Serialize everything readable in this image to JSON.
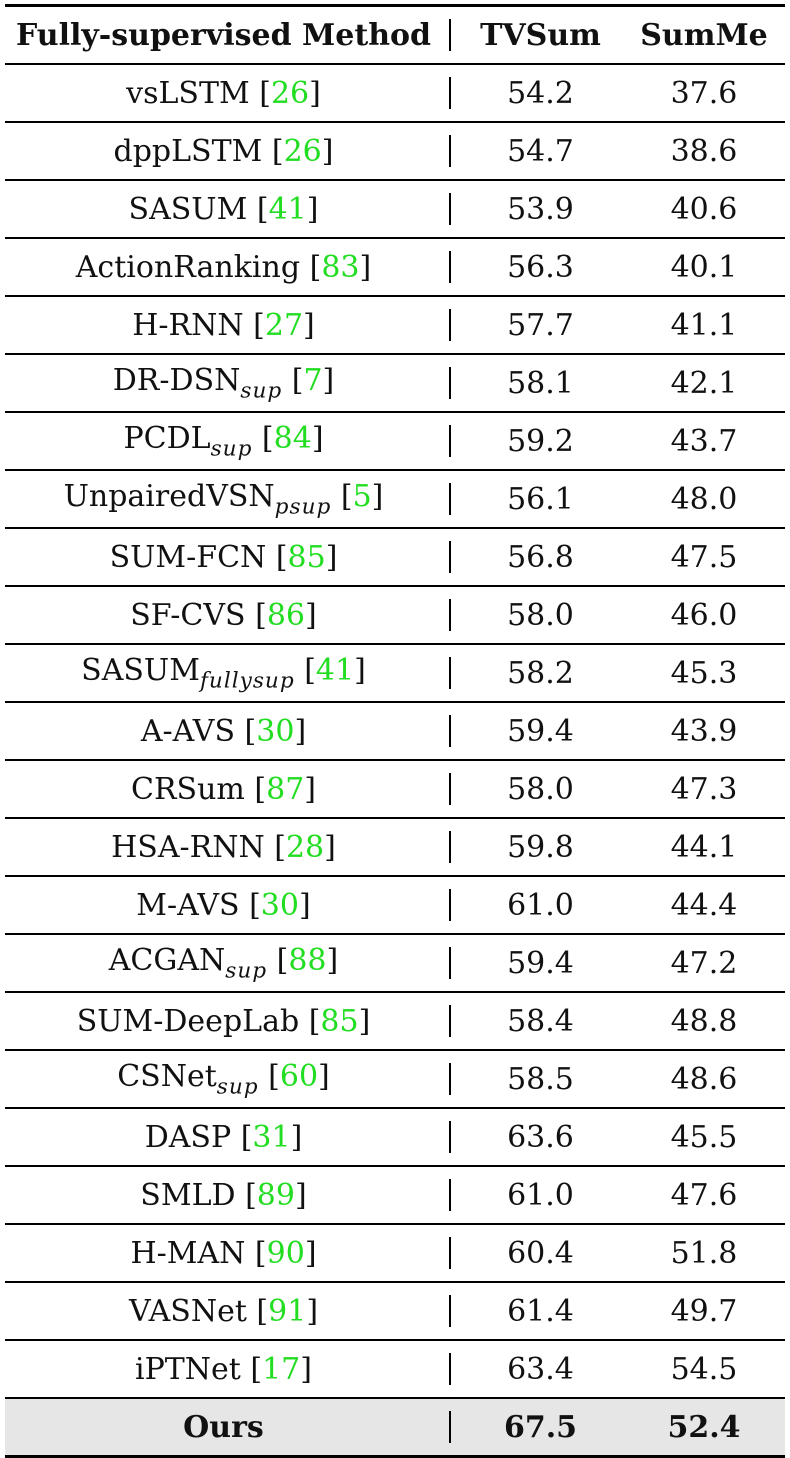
{
  "header": {
    "method": "Fully-supervised Method",
    "tvsum": "TVSum",
    "summe": "SumMe"
  },
  "rows": [
    {
      "name": "vsLSTM",
      "sub": "",
      "ref": "26",
      "tvsum": "54.2",
      "summe": "37.6"
    },
    {
      "name": "dppLSTM",
      "sub": "",
      "ref": "26",
      "tvsum": "54.7",
      "summe": "38.6"
    },
    {
      "name": "SASUM",
      "sub": "",
      "ref": "41",
      "tvsum": "53.9",
      "summe": "40.6"
    },
    {
      "name": "ActionRanking",
      "sub": "",
      "ref": "83",
      "tvsum": "56.3",
      "summe": "40.1"
    },
    {
      "name": "H-RNN",
      "sub": "",
      "ref": "27",
      "tvsum": "57.7",
      "summe": "41.1"
    },
    {
      "name": "DR-DSN",
      "sub": "sup",
      "ref": "7",
      "tvsum": "58.1",
      "summe": "42.1"
    },
    {
      "name": "PCDL",
      "sub": "sup",
      "ref": "84",
      "tvsum": "59.2",
      "summe": "43.7"
    },
    {
      "name": "UnpairedVSN",
      "sub": "psup",
      "ref": "5",
      "tvsum": "56.1",
      "summe": "48.0"
    },
    {
      "name": "SUM-FCN",
      "sub": "",
      "ref": "85",
      "tvsum": "56.8",
      "summe": "47.5"
    },
    {
      "name": "SF-CVS",
      "sub": "",
      "ref": "86",
      "tvsum": "58.0",
      "summe": "46.0"
    },
    {
      "name": "SASUM",
      "sub": "fullysup",
      "ref": "41",
      "tvsum": "58.2",
      "summe": "45.3"
    },
    {
      "name": "A-AVS",
      "sub": "",
      "ref": "30",
      "tvsum": "59.4",
      "summe": "43.9"
    },
    {
      "name": "CRSum",
      "sub": "",
      "ref": "87",
      "tvsum": "58.0",
      "summe": "47.3"
    },
    {
      "name": "HSA-RNN",
      "sub": "",
      "ref": "28",
      "tvsum": "59.8",
      "summe": "44.1"
    },
    {
      "name": "M-AVS",
      "sub": "",
      "ref": "30",
      "tvsum": "61.0",
      "summe": "44.4"
    },
    {
      "name": "ACGAN",
      "sub": "sup",
      "ref": "88",
      "tvsum": "59.4",
      "summe": "47.2"
    },
    {
      "name": "SUM-DeepLab",
      "sub": "",
      "ref": "85",
      "tvsum": "58.4",
      "summe": "48.8"
    },
    {
      "name": "CSNet",
      "sub": "sup",
      "ref": "60",
      "tvsum": "58.5",
      "summe": "48.6"
    },
    {
      "name": "DASP",
      "sub": "",
      "ref": "31",
      "tvsum": "63.6",
      "summe": "45.5"
    },
    {
      "name": "SMLD",
      "sub": "",
      "ref": "89",
      "tvsum": "61.0",
      "summe": "47.6"
    },
    {
      "name": "H-MAN",
      "sub": "",
      "ref": "90",
      "tvsum": "60.4",
      "summe": "51.8"
    },
    {
      "name": "VASNet",
      "sub": "",
      "ref": "91",
      "tvsum": "61.4",
      "summe": "49.7"
    },
    {
      "name": "iPTNet",
      "sub": "",
      "ref": "17",
      "tvsum": "63.4",
      "summe": "54.5"
    }
  ],
  "ours": {
    "name": "Ours",
    "tvsum": "67.5",
    "summe": "52.4"
  },
  "colors": {
    "citation": "#22dd22",
    "highlight_row": "#e6e6e6",
    "rule": "#000000"
  }
}
